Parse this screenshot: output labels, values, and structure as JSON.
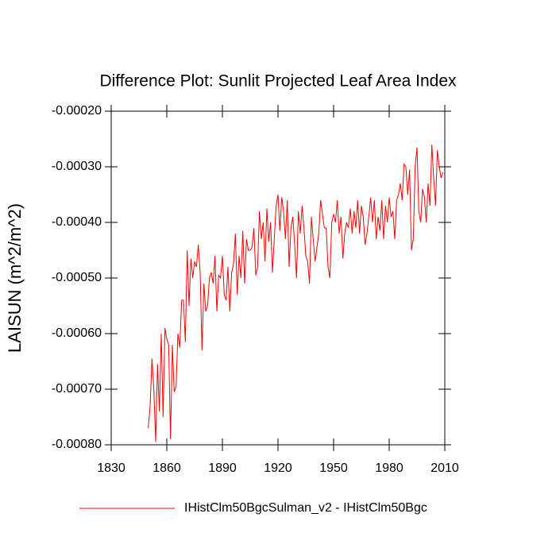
{
  "chart_data": {
    "type": "line",
    "title": "Difference Plot: Sunlit Projected Leaf Area Index",
    "y_label": "LAISUN  (m^2/m^2)",
    "x": [
      1850,
      1851,
      1852,
      1853,
      1854,
      1855,
      1856,
      1857,
      1858,
      1859,
      1860,
      1861,
      1862,
      1863,
      1864,
      1865,
      1866,
      1867,
      1868,
      1869,
      1870,
      1871,
      1872,
      1873,
      1874,
      1875,
      1876,
      1877,
      1878,
      1879,
      1880,
      1881,
      1882,
      1883,
      1884,
      1885,
      1886,
      1887,
      1888,
      1889,
      1890,
      1891,
      1892,
      1893,
      1894,
      1895,
      1896,
      1897,
      1898,
      1899,
      1900,
      1901,
      1902,
      1903,
      1904,
      1905,
      1906,
      1907,
      1908,
      1909,
      1910,
      1911,
      1912,
      1913,
      1914,
      1915,
      1916,
      1917,
      1918,
      1919,
      1920,
      1921,
      1922,
      1923,
      1924,
      1925,
      1926,
      1927,
      1928,
      1929,
      1930,
      1931,
      1932,
      1933,
      1934,
      1935,
      1936,
      1937,
      1938,
      1939,
      1940,
      1941,
      1942,
      1943,
      1944,
      1945,
      1946,
      1947,
      1948,
      1949,
      1950,
      1951,
      1952,
      1953,
      1954,
      1955,
      1956,
      1957,
      1958,
      1959,
      1960,
      1961,
      1962,
      1963,
      1964,
      1965,
      1966,
      1967,
      1968,
      1969,
      1970,
      1971,
      1972,
      1973,
      1974,
      1975,
      1976,
      1977,
      1978,
      1979,
      1980,
      1981,
      1982,
      1983,
      1984,
      1985,
      1986,
      1987,
      1988,
      1989,
      1990,
      1991,
      1992,
      1993,
      1994,
      1995,
      1996,
      1997,
      1998,
      1999,
      2000,
      2001,
      2002,
      2003,
      2004,
      2005,
      2006,
      2007,
      2008,
      2009
    ],
    "series": [
      {
        "name": "IHistClm50BgcSulman_v2 - IHistClm50Bgc",
        "color": "#ff0000",
        "values": [
          -0.00077,
          -0.00073,
          -0.000645,
          -0.0007,
          -0.000795,
          -0.000655,
          -0.00074,
          -0.0006,
          -0.00075,
          -0.00059,
          -0.00061,
          -0.00062,
          -0.00079,
          -0.00062,
          -0.000705,
          -0.000695,
          -0.0006,
          -0.000625,
          -0.00054,
          -0.00054,
          -0.000615,
          -0.00045,
          -0.00055,
          -0.000465,
          -0.0005,
          -0.00047,
          -0.00048,
          -0.00044,
          -0.00049,
          -0.00063,
          -0.00051,
          -0.00056,
          -0.00055,
          -0.0005,
          -0.00049,
          -0.00051,
          -0.00046,
          -0.00056,
          -0.000495,
          -0.0005,
          -0.00046,
          -0.00053,
          -0.00054,
          -0.00048,
          -0.00056,
          -0.00049,
          -0.000475,
          -0.00042,
          -0.00053,
          -0.00046,
          -0.0005,
          -0.000415,
          -0.00051,
          -0.00043,
          -0.00045,
          -0.00045,
          -0.000445,
          -0.00041,
          -0.000495,
          -0.00048,
          -0.00038,
          -0.00043,
          -0.0004,
          -0.00047,
          -0.000375,
          -0.000435,
          -0.0004,
          -0.00049,
          -0.00043,
          -0.00037,
          -0.00035,
          -0.000415,
          -0.000355,
          -0.00038,
          -0.00043,
          -0.00036,
          -0.00048,
          -0.00041,
          -0.00039,
          -0.00044,
          -0.0005,
          -0.00038,
          -0.00042,
          -0.00037,
          -0.00041,
          -0.00046,
          -0.00047,
          -0.00051,
          -0.00039,
          -0.00043,
          -0.00047,
          -0.000445,
          -0.00042,
          -0.00036,
          -0.000385,
          -0.00041,
          -0.00041,
          -0.00048,
          -0.0005,
          -0.0004,
          -0.000385,
          -0.0004,
          -0.00036,
          -0.00042,
          -0.00039,
          -0.000465,
          -0.00042,
          -0.0004,
          -0.00041,
          -0.000375,
          -0.00042,
          -0.00038,
          -0.00041,
          -0.00036,
          -0.00042,
          -0.00037,
          -0.00039,
          -0.00044,
          -0.00042,
          -0.00039,
          -0.000355,
          -0.0004,
          -0.00036,
          -0.00043,
          -0.00039,
          -0.000415,
          -0.00036,
          -0.00043,
          -0.00037,
          -0.0004,
          -0.000355,
          -0.00039,
          -0.00038,
          -0.00043,
          -0.00036,
          -0.00035,
          -0.00033,
          -0.00036,
          -0.000295,
          -0.0003,
          -0.00035,
          -0.000305,
          -0.00045,
          -0.00043,
          -0.0003,
          -0.000265,
          -0.00038,
          -0.0004,
          -0.00034,
          -0.000355,
          -0.0004,
          -0.00033,
          -0.00037,
          -0.00026,
          -0.00032,
          -0.00037,
          -0.00027,
          -0.0003,
          -0.00032,
          -0.00031
        ]
      }
    ],
    "xlim": [
      1830,
      2010
    ],
    "xticks": [
      1830,
      1860,
      1890,
      1920,
      1950,
      1980,
      2010
    ],
    "ylim": [
      -0.0008,
      -0.0002
    ],
    "yticks": [
      {
        "value": -0.0008,
        "label": "-0.00080"
      },
      {
        "value": -0.0007,
        "label": "-0.00070"
      },
      {
        "value": -0.0006,
        "label": "-0.00060"
      },
      {
        "value": -0.0005,
        "label": "-0.00050"
      },
      {
        "value": -0.0004,
        "label": "-0.00040"
      },
      {
        "value": -0.0003,
        "label": "-0.00030"
      },
      {
        "value": -0.0002,
        "label": "-0.00020"
      }
    ],
    "legend": "bottom"
  }
}
